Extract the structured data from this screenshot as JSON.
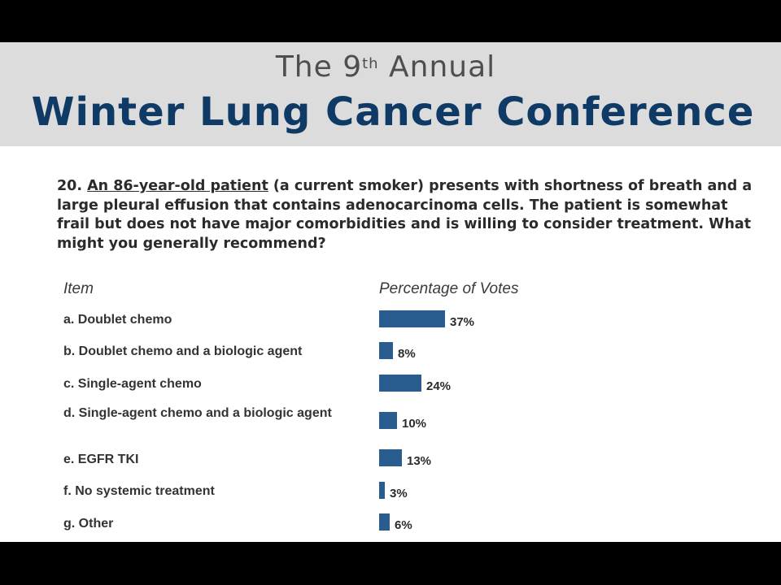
{
  "header": {
    "pre_title_before": "The 9",
    "pre_title_sup": "th",
    "pre_title_after": " Annual",
    "main_title": "Winter Lung Cancer Conference"
  },
  "question": {
    "number": "20.",
    "underlined": "An 86-year-old patient",
    "rest": " (a current smoker) presents with shortness of breath and a large pleural effusion that contains adenocarcinoma cells. The patient is somewhat frail but does not have major comorbidities and is willing to consider treatment. What might you generally recommend?"
  },
  "columns": {
    "item": "Item",
    "percentage": "Percentage of Votes"
  },
  "chart_data": {
    "type": "bar",
    "orientation": "horizontal",
    "categories": [
      "a. Doublet chemo",
      "b. Doublet chemo and a biologic agent",
      "c. Single-agent chemo",
      "d. Single-agent chemo and a biologic agent",
      "e. EGFR TKI",
      "f. No systemic treatment",
      "g. Other"
    ],
    "values": [
      37,
      8,
      24,
      10,
      13,
      3,
      6
    ],
    "value_labels": [
      "37%",
      "8%",
      "24%",
      "10%",
      "13%",
      "3%",
      "6%"
    ],
    "unit": "%",
    "bar_color": "#2a5d8f"
  }
}
